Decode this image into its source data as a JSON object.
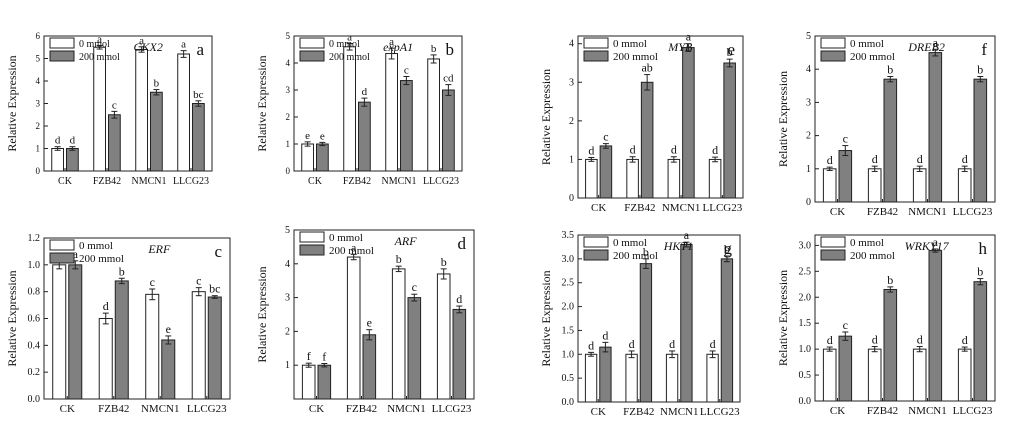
{
  "legend": {
    "low": "0 mmol",
    "high": "200 mmol"
  },
  "colors": {
    "low": "#ffffff",
    "high": "#808080",
    "axis": "#222222"
  },
  "chart_data": [
    {
      "type": "bar",
      "title": "CKX2",
      "panel": "a",
      "ylabel": "Relative Expression",
      "categories": [
        "CK",
        "FZB42",
        "NMCN1",
        "LLCG23"
      ],
      "ylim": [
        0,
        6
      ],
      "yticks": [
        "0",
        "1",
        "2",
        "3",
        "4",
        "5",
        "6"
      ],
      "series": [
        {
          "name": "0 mmol",
          "values": [
            1.0,
            5.5,
            5.4,
            5.2
          ],
          "errors": [
            0.08,
            0.08,
            0.12,
            0.15
          ],
          "letters": [
            "d",
            "a",
            "a",
            "a"
          ]
        },
        {
          "name": "200 mmol",
          "values": [
            1.0,
            2.5,
            3.5,
            3.0
          ],
          "errors": [
            0.08,
            0.15,
            0.12,
            0.12
          ],
          "letters": [
            "d",
            "c",
            "b",
            "bc"
          ]
        }
      ]
    },
    {
      "type": "bar",
      "title": "expA1",
      "panel": "b",
      "ylabel": "Relative Expression",
      "categories": [
        "CK",
        "FZB42",
        "NMCN1",
        "LLCG23"
      ],
      "ylim": [
        0,
        5
      ],
      "yticks": [
        "0",
        "1",
        "2",
        "3",
        "4",
        "5"
      ],
      "series": [
        {
          "name": "0 mmol",
          "values": [
            1.0,
            4.6,
            4.35,
            4.15
          ],
          "errors": [
            0.08,
            0.12,
            0.2,
            0.15
          ],
          "letters": [
            "e",
            "a",
            "a",
            "b"
          ]
        },
        {
          "name": "200 mmol",
          "values": [
            1.0,
            2.55,
            3.35,
            3.0
          ],
          "errors": [
            0.06,
            0.15,
            0.15,
            0.2
          ],
          "letters": [
            "e",
            "d",
            "c",
            "cd"
          ]
        }
      ]
    },
    {
      "type": "bar",
      "title": "MYB",
      "panel": "e",
      "ylabel": "Relative Expression",
      "categories": [
        "CK",
        "FZB42",
        "NMCN1",
        "LLCG23"
      ],
      "ylim": [
        0,
        4.2
      ],
      "yticks": [
        "0",
        "1",
        "2",
        "3",
        "4"
      ],
      "series": [
        {
          "name": "0 mmol",
          "values": [
            1.0,
            1.0,
            1.0,
            1.0
          ],
          "errors": [
            0.05,
            0.07,
            0.07,
            0.06
          ],
          "letters": [
            "d",
            "d",
            "d",
            "d"
          ]
        },
        {
          "name": "200 mmol",
          "values": [
            1.35,
            3.0,
            3.9,
            3.5
          ],
          "errors": [
            0.06,
            0.2,
            0.1,
            0.1
          ],
          "letters": [
            "c",
            "ab",
            "a",
            "b"
          ]
        }
      ]
    },
    {
      "type": "bar",
      "title": "DREB2",
      "panel": "f",
      "ylabel": "Relative Expression",
      "categories": [
        "CK",
        "FZB42",
        "NMCN1",
        "LLCG23"
      ],
      "ylim": [
        0,
        5
      ],
      "yticks": [
        "0",
        "1",
        "2",
        "3",
        "4",
        "5"
      ],
      "series": [
        {
          "name": "0 mmol",
          "values": [
            1.0,
            1.0,
            1.0,
            1.0
          ],
          "errors": [
            0.05,
            0.08,
            0.08,
            0.08
          ],
          "letters": [
            "d",
            "d",
            "d",
            "d"
          ]
        },
        {
          "name": "200 mmol",
          "values": [
            1.55,
            3.7,
            4.5,
            3.7
          ],
          "errors": [
            0.15,
            0.08,
            0.1,
            0.08
          ],
          "letters": [
            "c",
            "b",
            "a",
            "b"
          ]
        }
      ]
    },
    {
      "type": "bar",
      "title": "ERF",
      "panel": "c",
      "ylabel": "Relative Expression",
      "categories": [
        "CK",
        "FZB42",
        "NMCN1",
        "LLCG23"
      ],
      "ylim": [
        0,
        1.2
      ],
      "yticks": [
        "0.0",
        "0.2",
        "0.4",
        "0.6",
        "0.8",
        "1.0",
        "1.2"
      ],
      "series": [
        {
          "name": "0 mmol",
          "values": [
            1.0,
            0.6,
            0.78,
            0.8
          ],
          "errors": [
            0.03,
            0.04,
            0.04,
            0.03
          ],
          "letters": [
            "a",
            "d",
            "c",
            "c"
          ]
        },
        {
          "name": "200 mmol",
          "values": [
            1.0,
            0.88,
            0.44,
            0.76
          ],
          "errors": [
            0.03,
            0.02,
            0.03,
            0.01
          ],
          "letters": [
            "a",
            "b",
            "e",
            "bc"
          ]
        }
      ]
    },
    {
      "type": "bar",
      "title": "ARF",
      "panel": "d",
      "ylabel": "Relative Expression",
      "categories": [
        "CK",
        "FZB42",
        "NMCN1",
        "LLCG23"
      ],
      "ylim": [
        0,
        5
      ],
      "yticks": [
        "1",
        "2",
        "3",
        "4",
        "5"
      ],
      "series": [
        {
          "name": "0 mmol",
          "values": [
            1.0,
            4.2,
            3.85,
            3.7
          ],
          "errors": [
            0.06,
            0.08,
            0.08,
            0.15
          ],
          "letters": [
            "f",
            "a",
            "b",
            "b"
          ]
        },
        {
          "name": "200 mmol",
          "values": [
            1.0,
            1.9,
            3.0,
            2.65
          ],
          "errors": [
            0.05,
            0.15,
            0.1,
            0.1
          ],
          "letters": [
            "f",
            "e",
            "c",
            "d"
          ]
        }
      ]
    },
    {
      "type": "bar",
      "title": "HKT1",
      "panel": "g",
      "ylabel": "Relative Expression",
      "categories": [
        "CK",
        "FZB42",
        "NMCN1",
        "LLCG23"
      ],
      "ylim": [
        0,
        3.5
      ],
      "yticks": [
        "0.0",
        "0.5",
        "1.0",
        "1.5",
        "2.0",
        "2.5",
        "3.0",
        "3.5"
      ],
      "series": [
        {
          "name": "0 mmol",
          "values": [
            1.0,
            1.0,
            1.0,
            1.0
          ],
          "errors": [
            0.04,
            0.07,
            0.07,
            0.07
          ],
          "letters": [
            "d",
            "d",
            "d",
            "d"
          ]
        },
        {
          "name": "200 mmol",
          "values": [
            1.15,
            2.9,
            3.3,
            3.0
          ],
          "errors": [
            0.1,
            0.1,
            0.05,
            0.06
          ],
          "letters": [
            "d",
            "b",
            "a",
            "b"
          ]
        }
      ]
    },
    {
      "type": "bar",
      "title": "WRKY17",
      "panel": "h",
      "ylabel": "Relative Expression",
      "categories": [
        "CK",
        "FZB42",
        "NMCN1",
        "LLCG23"
      ],
      "ylim": [
        0,
        3.2
      ],
      "yticks": [
        "0.0",
        "0.5",
        "1.0",
        "1.5",
        "2.0",
        "2.5",
        "3.0"
      ],
      "series": [
        {
          "name": "0 mmol",
          "values": [
            1.0,
            1.0,
            1.0,
            1.0
          ],
          "errors": [
            0.04,
            0.05,
            0.05,
            0.04
          ],
          "letters": [
            "d",
            "d",
            "d",
            "d"
          ]
        },
        {
          "name": "200 mmol",
          "values": [
            1.25,
            2.15,
            2.9,
            2.3
          ],
          "errors": [
            0.08,
            0.05,
            0.03,
            0.06
          ],
          "letters": [
            "c",
            "b",
            "a",
            "b"
          ]
        }
      ]
    }
  ]
}
